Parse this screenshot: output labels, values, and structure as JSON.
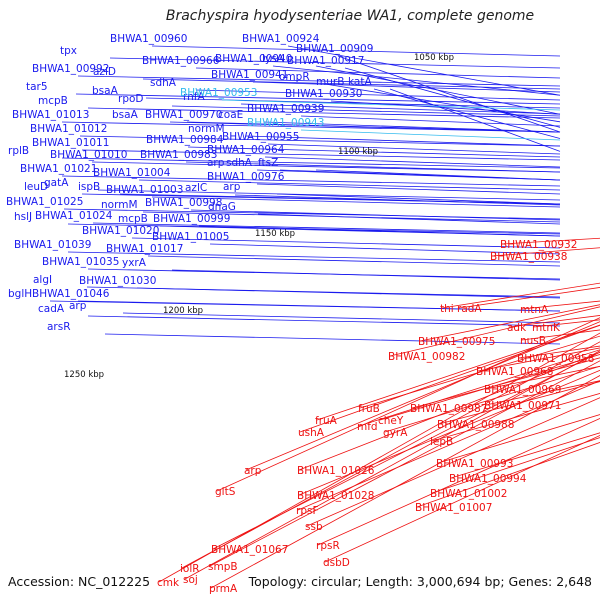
{
  "title": "Brachyspira hyodysenteriae WA1, complete genome",
  "footer": {
    "accession": "Accession: NC_012225",
    "info": "Topology: circular; Length: 3,000,694 bp; Genes: 2,648"
  },
  "colors": {
    "forward": "#1a1aee",
    "reverse": "#ee1111",
    "highlight": "#33bbee",
    "backbone": "#888888"
  },
  "kbp_markers": [
    "1050 kbp",
    "1100 kbp",
    "1150 kbp",
    "1200 kbp",
    "1250 kbp"
  ],
  "left_labels": [
    {
      "text": "BHWA1_00960"
    },
    {
      "text": "BHWA1_00924"
    },
    {
      "text": "tpx"
    },
    {
      "text": "lysA"
    },
    {
      "text": "BHWA1_00940"
    },
    {
      "text": "BHWA1_00909"
    },
    {
      "text": "BHWA1_00992"
    },
    {
      "text": "azlD"
    },
    {
      "text": "BHWA1_00966"
    },
    {
      "text": "BHWA1_00917"
    },
    {
      "text": "BHWA1_00941"
    },
    {
      "text": "ompR"
    },
    {
      "text": "tar5"
    },
    {
      "text": "bsaA"
    },
    {
      "text": "murB"
    },
    {
      "text": "katA"
    },
    {
      "text": "sdhA"
    },
    {
      "text": "mcpB"
    },
    {
      "text": "rpoD"
    },
    {
      "text": "rnfA"
    },
    {
      "text": "BHWA1_00953",
      "highlight": true
    },
    {
      "text": "BHWA1_00930"
    },
    {
      "text": "BHWA1_01013"
    },
    {
      "text": "BHWA1_00939"
    },
    {
      "text": "bsaA"
    },
    {
      "text": "BHWA1_00970"
    },
    {
      "text": "coaE"
    },
    {
      "text": "BHWA1_01012"
    },
    {
      "text": "BHWA1_00943",
      "highlight": true
    },
    {
      "text": "normM"
    },
    {
      "text": "BHWA1_00984"
    },
    {
      "text": "BHWA1_00955"
    },
    {
      "text": "BHWA1_01011"
    },
    {
      "text": "rplB"
    },
    {
      "text": "BHWA1_00964"
    },
    {
      "text": "BHWA1_01010"
    },
    {
      "text": "BHWA1_00983"
    },
    {
      "text": "arp"
    },
    {
      "text": "sdhA"
    },
    {
      "text": "ftsZ"
    },
    {
      "text": "BHWA1_01021"
    },
    {
      "text": "BHWA1_01004"
    },
    {
      "text": "BHWA1_00976"
    },
    {
      "text": "gatA"
    },
    {
      "text": "leuD"
    },
    {
      "text": "ispB"
    },
    {
      "text": "BHWA1_01003"
    },
    {
      "text": "azlC"
    },
    {
      "text": "arp"
    },
    {
      "text": "BHWA1_01025"
    },
    {
      "text": "normM"
    },
    {
      "text": "BHWA1_00998"
    },
    {
      "text": "dnaG"
    },
    {
      "text": "hslJ"
    },
    {
      "text": "BHWA1_01024"
    },
    {
      "text": "mcpB"
    },
    {
      "text": "BHWA1_00999"
    },
    {
      "text": "BHWA1_01020"
    },
    {
      "text": "BHWA1_01039"
    },
    {
      "text": "BHWA1_01005"
    },
    {
      "text": "BHWA1_01017"
    },
    {
      "text": "BHWA1_01035"
    },
    {
      "text": "yxrA"
    },
    {
      "text": "algI"
    },
    {
      "text": "BHWA1_01030"
    },
    {
      "text": "bglH"
    },
    {
      "text": "BHWA1_01046"
    },
    {
      "text": "cadA"
    },
    {
      "text": "arp"
    },
    {
      "text": "arsR"
    }
  ],
  "right_labels": [
    {
      "text": "BHWA1_00932"
    },
    {
      "text": "BHWA1_00938"
    },
    {
      "text": "thi"
    },
    {
      "text": "radA"
    },
    {
      "text": "mtnA"
    },
    {
      "text": "adk"
    },
    {
      "text": "mtnK"
    },
    {
      "text": "nusB"
    },
    {
      "text": "BHWA1_00975"
    },
    {
      "text": "BHWA1_00958"
    },
    {
      "text": "BHWA1_00982"
    },
    {
      "text": "BHWA1_00968"
    },
    {
      "text": "BHWA1_00969"
    },
    {
      "text": "BHWA1_00971"
    },
    {
      "text": "fruB"
    },
    {
      "text": "BHWA1_00987"
    },
    {
      "text": "fruA"
    },
    {
      "text": "cheY"
    },
    {
      "text": "mfd"
    },
    {
      "text": "gyrA"
    },
    {
      "text": "BHWA1_00988"
    },
    {
      "text": "ushA"
    },
    {
      "text": "lepB"
    },
    {
      "text": "BHWA1_00993"
    },
    {
      "text": "BHWA1_00994"
    },
    {
      "text": "arp"
    },
    {
      "text": "BHWA1_01026"
    },
    {
      "text": "BHWA1_01002"
    },
    {
      "text": "BHWA1_01007"
    },
    {
      "text": "gltS"
    },
    {
      "text": "BHWA1_01028"
    },
    {
      "text": "rpsF"
    },
    {
      "text": "ssb"
    },
    {
      "text": "rpsR"
    },
    {
      "text": "dsbD"
    },
    {
      "text": "BHWA1_01067"
    },
    {
      "text": "smpB"
    },
    {
      "text": "iolR"
    },
    {
      "text": "cmk"
    },
    {
      "text": "soj"
    },
    {
      "text": "prmA"
    }
  ]
}
